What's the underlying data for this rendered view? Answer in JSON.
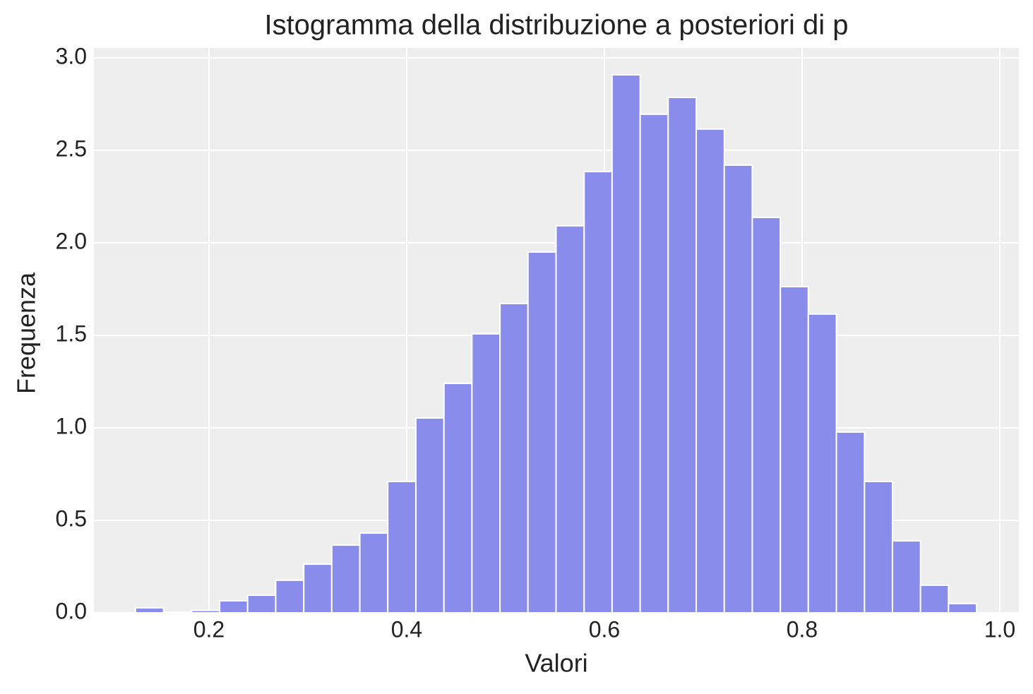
{
  "chart_data": {
    "type": "histogram",
    "title": "Istogramma della distribuzione a posteriori di p",
    "x_label": "Valori",
    "y_label": "Frequenza",
    "bins": [
      0.1257,
      0.1541,
      0.1824,
      0.2108,
      0.2391,
      0.2675,
      0.2959,
      0.3242,
      0.3526,
      0.3809,
      0.4093,
      0.4377,
      0.466,
      0.4944,
      0.5227,
      0.5511,
      0.5795,
      0.6078,
      0.6362,
      0.6645,
      0.6929,
      0.7213,
      0.7496,
      0.778,
      0.8063,
      0.8347,
      0.8631,
      0.8914,
      0.9198,
      0.9481,
      0.9765
    ],
    "values": [
      0.027,
      0.004,
      0.013,
      0.065,
      0.095,
      0.176,
      0.263,
      0.366,
      0.431,
      0.71,
      1.053,
      1.24,
      1.508,
      1.672,
      1.95,
      2.092,
      2.385,
      2.908,
      2.695,
      2.786,
      2.615,
      2.42,
      2.137,
      1.763,
      1.615,
      0.977,
      0.71,
      0.389,
      0.149,
      0.05
    ],
    "color": "#8a8cec",
    "xlim": [
      0.0836,
      1.0193
    ],
    "ylim": [
      0,
      3.053
    ],
    "xticks": [
      0.2,
      0.4,
      0.6,
      0.8,
      {
        "value": 1.0,
        "label": "1.0"
      }
    ],
    "yticks": [
      {
        "value": 0,
        "label": "0.0"
      },
      0.5,
      {
        "value": 1,
        "label": "1.0"
      },
      1.5,
      {
        "value": 2,
        "label": "2.0"
      },
      2.5,
      {
        "value": 3,
        "label": "3.0"
      }
    ],
    "grid": true
  }
}
